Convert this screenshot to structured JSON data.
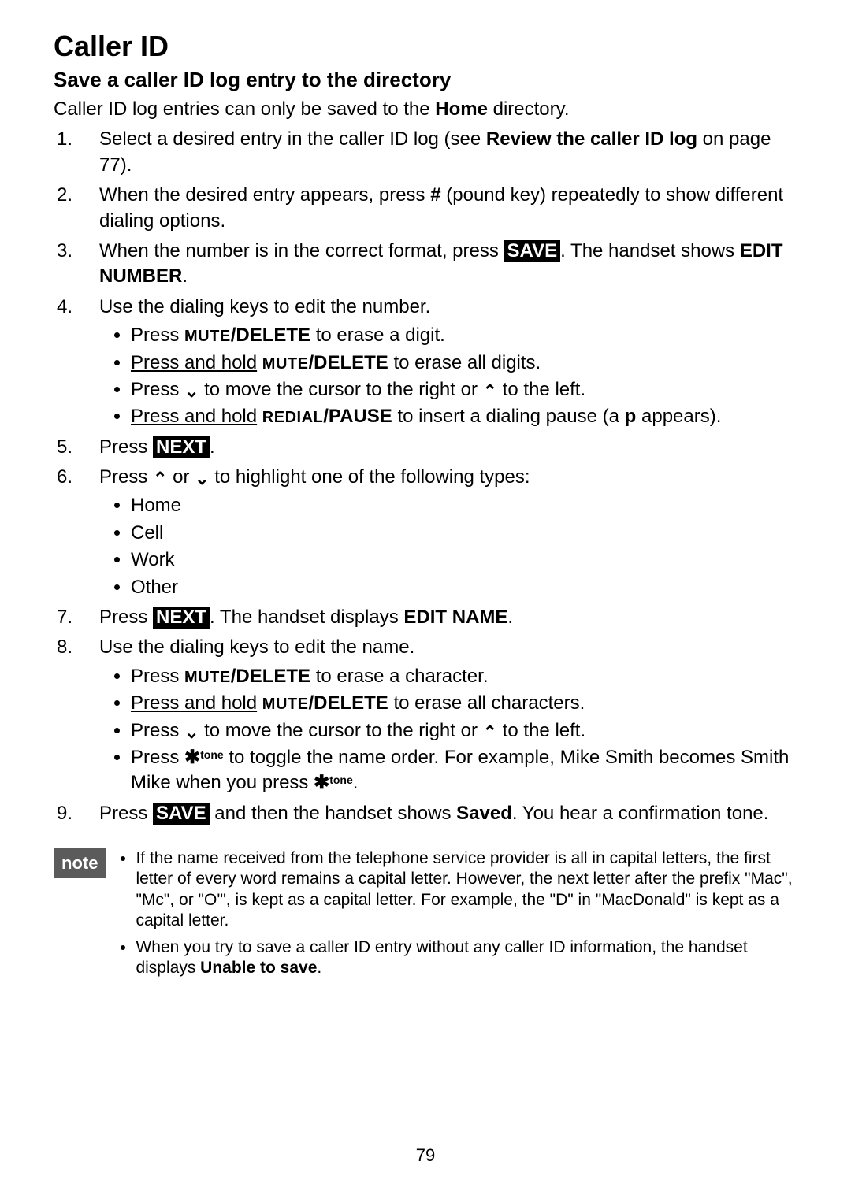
{
  "title": "Caller ID",
  "subtitle": "Save a caller ID log entry to the directory",
  "intro_prefix": "Caller ID log entries can only be saved to the ",
  "intro_bold": "Home",
  "intro_suffix": " directory.",
  "step1_a": "Select a desired entry in the caller ID log (see ",
  "step1_b": "Review the caller ID log",
  "step1_c": " on page 77).",
  "step2_a": "When the desired entry appears, press ",
  "step2_pound": "#",
  "step2_b": " (pound key) repeatedly to show different dialing options.",
  "step3_a": "When the number is in the correct format, press ",
  "step3_save": "SAVE",
  "step3_b": ". The handset shows ",
  "step3_edit": "EDIT NUMBER",
  "step3_c": ".",
  "step4": "Use the dialing keys to edit the number.",
  "step4_b1_a": "Press ",
  "bt_mute": "MUTE",
  "bt_delete": "/DELETE",
  "step4_b1_b": " to erase a digit.",
  "press_hold": "Press and hold",
  "step4_b2_b": " to erase all digits.",
  "step4_b3_a": "Press ",
  "chev_down": "⌄",
  "step4_b3_b": " to move the cursor to the right or ",
  "chev_up": "⌃",
  "step4_b3_c": " to the left.",
  "bt_redial": "REDIAL",
  "bt_pause": "/PAUSE",
  "step4_b4_b": " to insert a dialing pause (a ",
  "p_letter": "p",
  "step4_b4_c": " appears).",
  "step5_a": "Press ",
  "btn_next": "NEXT",
  "step5_b": ".",
  "step6_a": "Press ",
  "step6_b": " or ",
  "step6_c": " to highlight one of the following types:",
  "type_home": "Home",
  "type_cell": "Cell",
  "type_work": "Work",
  "type_other": "Other",
  "step7_a": "Press ",
  "step7_b": ". The handset displays ",
  "step7_edit": "EDIT NAME",
  "step7_c": ".",
  "step8": "Use the dialing keys to edit the name.",
  "step8_b1_b": " to erase a character.",
  "step8_b2_b": " to erase all characters.",
  "tone_key": "✱",
  "tone_sup": "tone",
  "step8_b4_a": "Press ",
  "step8_b4_b": " to toggle the name order. For example, Mike Smith becomes Smith Mike when you press ",
  "step8_b4_c": ".",
  "step9_a": "Press ",
  "step9_b": " and then the handset shows ",
  "step9_saved": "Saved",
  "step9_c": ". You hear a confirmation tone.",
  "note_label": "note",
  "note1": "If the name received from the telephone service provider is all in capital letters, the first letter of every word remains a capital letter. However, the next letter after the prefix \"Mac\", \"Mc\", or \"O'\", is kept as a capital letter. For example, the \"D\" in \"MacDonald\" is kept as a capital letter.",
  "note2_a": "When you try to save a caller ID entry without any caller ID information, the handset displays ",
  "note2_b": "Unable to save",
  "note2_c": ".",
  "page_number": "79"
}
